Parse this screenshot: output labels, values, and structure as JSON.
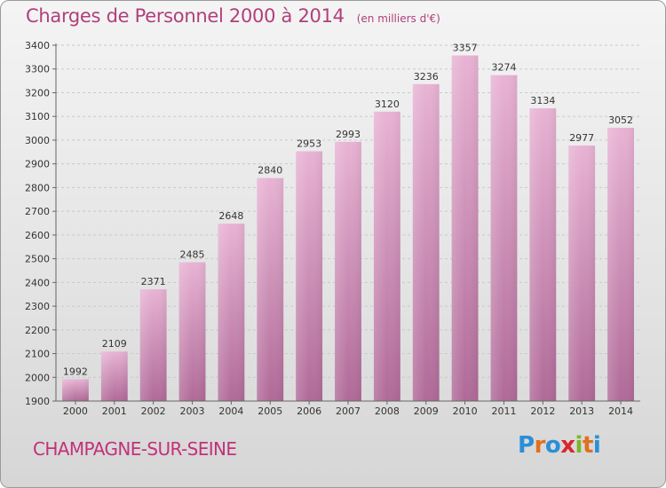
{
  "header": {
    "title": "Charges de Personnel 2000 à 2014",
    "subtitle": "(en milliers d'€)"
  },
  "footer": {
    "commune": "CHAMPAGNE-SUR-SEINE",
    "logo": "Proxiti"
  },
  "colors": {
    "title": "#b0407a",
    "bar_top": "#e8b3d4",
    "bar_bottom": "#b06a98",
    "commune": "#c2317a"
  },
  "chart_data": {
    "type": "bar",
    "title": "Charges de Personnel 2000 à 2014",
    "subtitle": "(en milliers d'€)",
    "categories": [
      "2000",
      "2001",
      "2002",
      "2003",
      "2004",
      "2005",
      "2006",
      "2007",
      "2008",
      "2009",
      "2010",
      "2011",
      "2012",
      "2013",
      "2014"
    ],
    "values": [
      1992,
      2109,
      2371,
      2485,
      2648,
      2840,
      2953,
      2993,
      3120,
      3236,
      3357,
      3274,
      3134,
      2977,
      3052
    ],
    "ylim": [
      1900,
      3400
    ],
    "yticks": [
      1900,
      2000,
      2100,
      2200,
      2300,
      2400,
      2500,
      2600,
      2700,
      2800,
      2900,
      3000,
      3100,
      3200,
      3300,
      3400
    ],
    "grid": true,
    "xlabel": "",
    "ylabel": ""
  }
}
